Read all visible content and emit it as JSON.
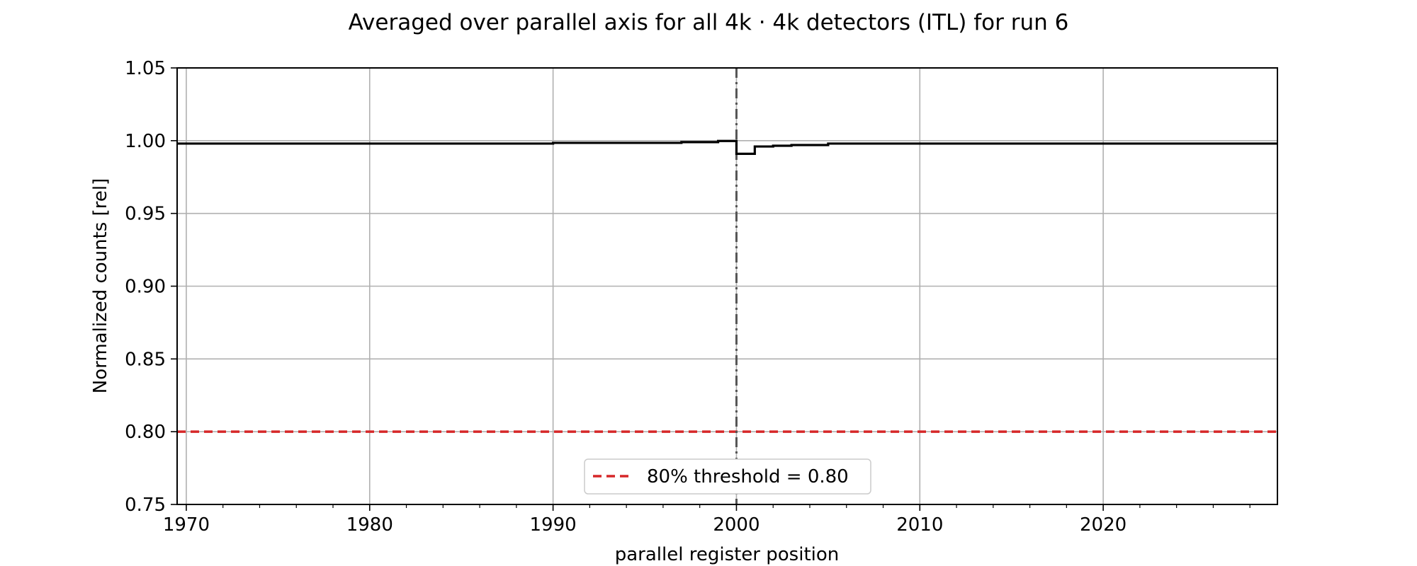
{
  "chart_data": {
    "type": "line",
    "title": "Averaged over parallel axis for all 4k · 4k detectors (ITL) for run 6",
    "xlabel": "parallel register position",
    "ylabel": "Normalized counts [rel]",
    "xlim": [
      1969.5,
      2029.5
    ],
    "ylim": [
      0.75,
      1.05
    ],
    "x_ticks": [
      1970,
      1980,
      1990,
      2000,
      2010,
      2020
    ],
    "y_ticks": [
      0.75,
      0.8,
      0.85,
      0.9,
      0.95,
      1.0,
      1.05
    ],
    "y_tick_labels": [
      "0.75",
      "0.80",
      "0.85",
      "0.90",
      "0.95",
      "1.00",
      "1.05"
    ],
    "x_minor_step": 2,
    "grid": true,
    "legend_placement": "bottom-center",
    "series": [
      {
        "style": "step-post",
        "color": "#000000",
        "x": [
          1969.5,
          1990,
          1997,
          1999,
          2000,
          2001,
          2002,
          2003,
          2005,
          2029.5
        ],
        "y": [
          0.998,
          0.9985,
          0.999,
          0.9998,
          0.991,
          0.996,
          0.9965,
          0.997,
          0.998,
          0.998
        ]
      }
    ],
    "reference_lines": [
      {
        "orientation": "horizontal",
        "value": 0.8,
        "color": "#d62728",
        "style": "dashed",
        "label": "80% threshold = 0.80"
      },
      {
        "orientation": "vertical",
        "value": 2000,
        "color": "#555555",
        "style": "dashdot"
      }
    ]
  }
}
